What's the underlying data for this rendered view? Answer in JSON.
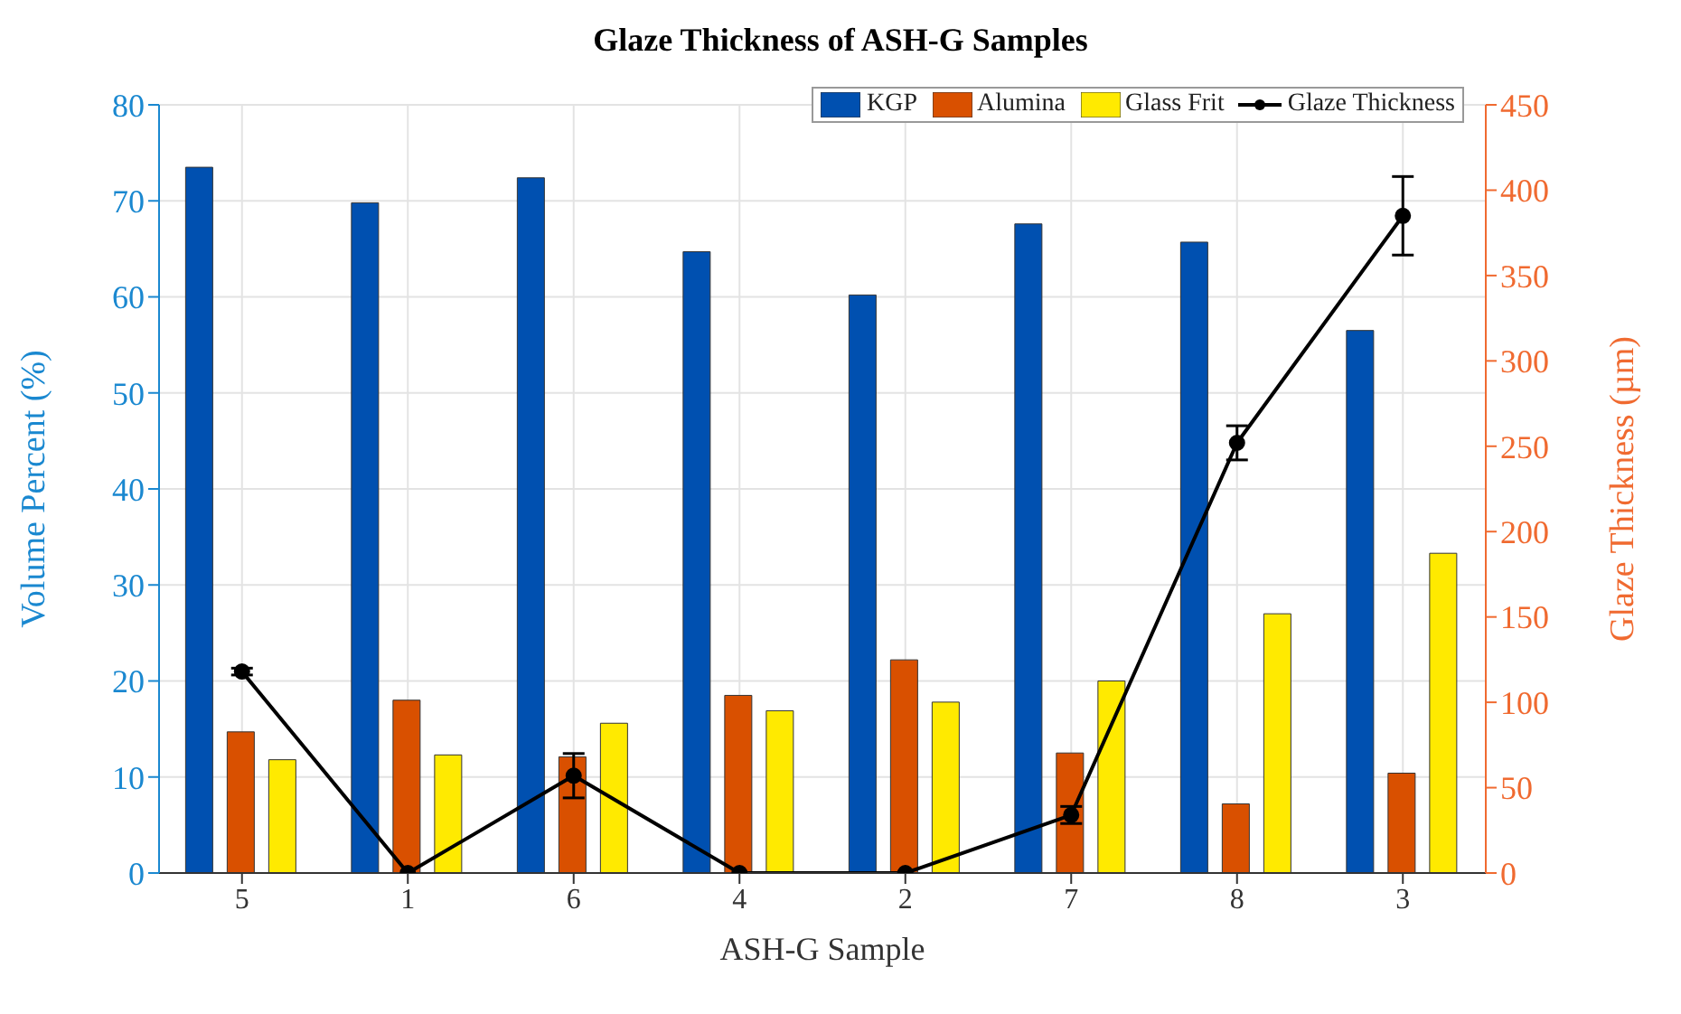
{
  "chart_data": {
    "type": "bar",
    "title": "Glaze Thickness of ASH-G Samples",
    "xlabel": "ASH-G Sample",
    "ylabel": "Volume Percent (%)",
    "y2label": "Glaze Thickness (µm)",
    "categories": [
      "5",
      "1",
      "6",
      "4",
      "2",
      "7",
      "8",
      "3"
    ],
    "series": [
      {
        "name": "KGP",
        "color": "#0050b0",
        "values": [
          73.5,
          69.8,
          72.4,
          64.7,
          60.2,
          67.6,
          65.7,
          56.5
        ]
      },
      {
        "name": "Alumina",
        "color": "#d95000",
        "values": [
          14.7,
          18.0,
          12.1,
          18.5,
          22.2,
          12.5,
          7.2,
          10.4
        ]
      },
      {
        "name": "Glass Frit",
        "color": "#ffea00",
        "values": [
          11.8,
          12.3,
          15.6,
          16.9,
          17.8,
          20.0,
          27.0,
          33.3
        ]
      },
      {
        "name": "Glaze Thickness",
        "type": "line",
        "axis": "y2",
        "color": "#000000",
        "marker": "circle",
        "line_style": "solid",
        "values": [
          118,
          0,
          57,
          0,
          0,
          34,
          252,
          385
        ],
        "errors": [
          2,
          null,
          13,
          null,
          null,
          5,
          10,
          23
        ]
      }
    ],
    "ylim": [
      0,
      80
    ],
    "yticks": [
      0,
      10,
      20,
      30,
      40,
      50,
      60,
      70,
      80
    ],
    "y2lim": [
      0,
      450
    ],
    "y2ticks": [
      0,
      50,
      100,
      150,
      200,
      250,
      300,
      350,
      400,
      450
    ],
    "grid": true,
    "legend": "top right"
  }
}
